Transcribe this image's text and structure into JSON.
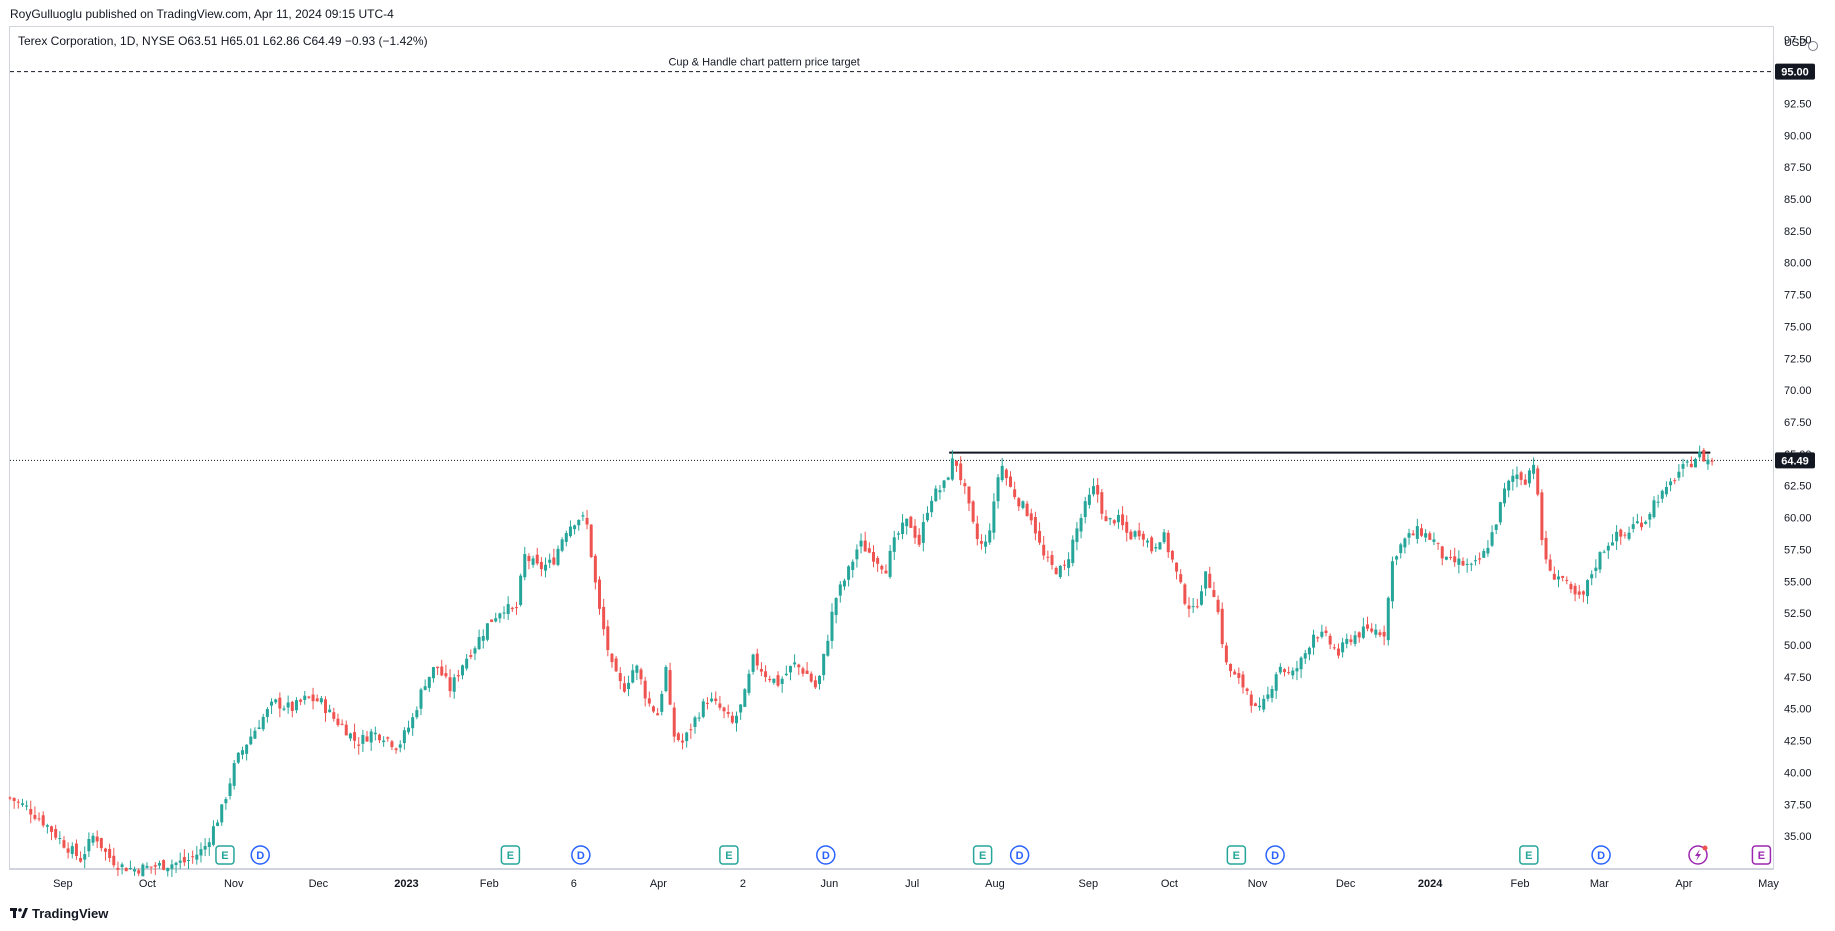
{
  "header": {
    "publisher_line": "RoyGulluoglu published on TradingView.com, Apr 11, 2024 09:15 UTC-4",
    "symbol_line": "Terex Corporation, 1D, NYSE  O63.51  H65.01  L62.86  C64.49  −0.93 (−1.42%)"
  },
  "price_axis": {
    "currency": "USD"
  },
  "footer": {
    "brand": "TradingView"
  },
  "colors": {
    "up": "#26a69a",
    "down": "#ef5350",
    "earnings": "#26a69a",
    "dividend": "#2962ff",
    "split": "#9c27b0",
    "text": "#131722"
  },
  "chart_data": {
    "type": "candlestick",
    "ylim": [
      32.5,
      98.5
    ],
    "y_ticks": [
      "35.00",
      "37.50",
      "40.00",
      "42.50",
      "45.00",
      "47.50",
      "50.00",
      "52.50",
      "55.00",
      "57.50",
      "60.00",
      "62.50",
      "65.00",
      "67.50",
      "70.00",
      "72.50",
      "75.00",
      "77.50",
      "80.00",
      "82.50",
      "85.00",
      "87.50",
      "90.00",
      "92.50",
      "95.00",
      "97.50"
    ],
    "x_labels": [
      {
        "label": "Sep",
        "x": 0.03
      },
      {
        "label": "Oct",
        "x": 0.078
      },
      {
        "label": "Nov",
        "x": 0.127
      },
      {
        "label": "Dec",
        "x": 0.175
      },
      {
        "label": "2023",
        "x": 0.225,
        "bold": true
      },
      {
        "label": "Feb",
        "x": 0.272
      },
      {
        "label": "6",
        "x": 0.32
      },
      {
        "label": "Apr",
        "x": 0.368
      },
      {
        "label": "2",
        "x": 0.416
      },
      {
        "label": "Jun",
        "x": 0.465
      },
      {
        "label": "Jul",
        "x": 0.512
      },
      {
        "label": "Aug",
        "x": 0.559
      },
      {
        "label": "Sep",
        "x": 0.612
      },
      {
        "label": "Oct",
        "x": 0.658
      },
      {
        "label": "Nov",
        "x": 0.708
      },
      {
        "label": "Dec",
        "x": 0.758
      },
      {
        "label": "2024",
        "x": 0.806,
        "bold": true
      },
      {
        "label": "Feb",
        "x": 0.857
      },
      {
        "label": "Mar",
        "x": 0.902
      },
      {
        "label": "Apr",
        "x": 0.95
      },
      {
        "label": "May",
        "x": 0.998
      }
    ],
    "last_price": {
      "value": 64.49,
      "label": "64.49"
    },
    "target": {
      "value": 95.0,
      "label": "95.00",
      "annotation": "Cup & Handle chart pattern price target"
    },
    "resistance": {
      "value": 65.1,
      "x_start": 0.533,
      "x_end": 0.965
    },
    "events": [
      {
        "type": "E",
        "x": 0.122
      },
      {
        "type": "D",
        "x": 0.142
      },
      {
        "type": "E",
        "x": 0.284
      },
      {
        "type": "D",
        "x": 0.324
      },
      {
        "type": "E",
        "x": 0.408
      },
      {
        "type": "D",
        "x": 0.463
      },
      {
        "type": "E",
        "x": 0.552
      },
      {
        "type": "D",
        "x": 0.573
      },
      {
        "type": "E",
        "x": 0.696
      },
      {
        "type": "D",
        "x": 0.718
      },
      {
        "type": "E",
        "x": 0.862
      },
      {
        "type": "D",
        "x": 0.903
      },
      {
        "type": "S",
        "x": 0.958
      },
      {
        "type": "E",
        "x": 0.994,
        "future": true
      }
    ],
    "close_path": [
      [
        0.0,
        38.0
      ],
      [
        0.01,
        37.2
      ],
      [
        0.02,
        36.0
      ],
      [
        0.03,
        34.5
      ],
      [
        0.04,
        33.2
      ],
      [
        0.048,
        35.2
      ],
      [
        0.055,
        33.5
      ],
      [
        0.062,
        32.7
      ],
      [
        0.07,
        32.4
      ],
      [
        0.08,
        32.6
      ],
      [
        0.09,
        32.8
      ],
      [
        0.1,
        33.0
      ],
      [
        0.11,
        34.0
      ],
      [
        0.12,
        37.0
      ],
      [
        0.128,
        40.8
      ],
      [
        0.135,
        42.5
      ],
      [
        0.142,
        44.0
      ],
      [
        0.15,
        45.5
      ],
      [
        0.16,
        45.0
      ],
      [
        0.168,
        45.8
      ],
      [
        0.176,
        45.6
      ],
      [
        0.184,
        44.2
      ],
      [
        0.19,
        43.5
      ],
      [
        0.197,
        42.3
      ],
      [
        0.205,
        43.1
      ],
      [
        0.212,
        42.9
      ],
      [
        0.22,
        42.0
      ],
      [
        0.228,
        44.0
      ],
      [
        0.235,
        47.0
      ],
      [
        0.242,
        48.4
      ],
      [
        0.25,
        46.5
      ],
      [
        0.257,
        48.6
      ],
      [
        0.264,
        50.0
      ],
      [
        0.272,
        51.8
      ],
      [
        0.28,
        53.0
      ],
      [
        0.287,
        52.5
      ],
      [
        0.292,
        57.0
      ],
      [
        0.3,
        56.0
      ],
      [
        0.308,
        56.5
      ],
      [
        0.315,
        59.0
      ],
      [
        0.322,
        60.0
      ],
      [
        0.327,
        59.8
      ],
      [
        0.33,
        57.0
      ],
      [
        0.334,
        53.0
      ],
      [
        0.338,
        50.5
      ],
      [
        0.342,
        48.0
      ],
      [
        0.348,
        46.5
      ],
      [
        0.355,
        48.5
      ],
      [
        0.362,
        45.5
      ],
      [
        0.368,
        44.5
      ],
      [
        0.372,
        48.5
      ],
      [
        0.376,
        43.0
      ],
      [
        0.382,
        42.3
      ],
      [
        0.39,
        44.5
      ],
      [
        0.396,
        45.8
      ],
      [
        0.403,
        45.0
      ],
      [
        0.41,
        43.8
      ],
      [
        0.416,
        45.5
      ],
      [
        0.422,
        49.0
      ],
      [
        0.428,
        47.8
      ],
      [
        0.436,
        47.0
      ],
      [
        0.445,
        48.5
      ],
      [
        0.452,
        47.8
      ],
      [
        0.458,
        46.5
      ],
      [
        0.463,
        49.8
      ],
      [
        0.468,
        53.5
      ],
      [
        0.475,
        55.5
      ],
      [
        0.482,
        58.0
      ],
      [
        0.49,
        57.0
      ],
      [
        0.497,
        56.0
      ],
      [
        0.503,
        58.5
      ],
      [
        0.51,
        59.8
      ],
      [
        0.516,
        58.0
      ],
      [
        0.522,
        61.5
      ],
      [
        0.53,
        62.5
      ],
      [
        0.536,
        64.8
      ],
      [
        0.542,
        62.0
      ],
      [
        0.548,
        58.5
      ],
      [
        0.553,
        57.5
      ],
      [
        0.558,
        60.5
      ],
      [
        0.562,
        64.5
      ],
      [
        0.567,
        62.5
      ],
      [
        0.574,
        61.0
      ],
      [
        0.58,
        60.0
      ],
      [
        0.586,
        57.0
      ],
      [
        0.592,
        56.0
      ],
      [
        0.598,
        55.8
      ],
      [
        0.604,
        58.5
      ],
      [
        0.61,
        60.8
      ],
      [
        0.616,
        62.5
      ],
      [
        0.622,
        59.5
      ],
      [
        0.628,
        60.0
      ],
      [
        0.635,
        58.5
      ],
      [
        0.642,
        59.0
      ],
      [
        0.648,
        57.5
      ],
      [
        0.654,
        58.8
      ],
      [
        0.66,
        56.5
      ],
      [
        0.666,
        53.8
      ],
      [
        0.672,
        52.5
      ],
      [
        0.678,
        55.5
      ],
      [
        0.684,
        54.0
      ],
      [
        0.69,
        48.5
      ],
      [
        0.696,
        47.3
      ],
      [
        0.702,
        46.5
      ],
      [
        0.708,
        44.5
      ],
      [
        0.714,
        46.0
      ],
      [
        0.72,
        48.5
      ],
      [
        0.727,
        47.5
      ],
      [
        0.734,
        49.0
      ],
      [
        0.74,
        51.0
      ],
      [
        0.747,
        50.5
      ],
      [
        0.754,
        49.3
      ],
      [
        0.76,
        50.5
      ],
      [
        0.767,
        51.0
      ],
      [
        0.774,
        51.2
      ],
      [
        0.78,
        51.0
      ],
      [
        0.785,
        57.0
      ],
      [
        0.792,
        58.3
      ],
      [
        0.8,
        59.0
      ],
      [
        0.808,
        58.2
      ],
      [
        0.815,
        56.5
      ],
      [
        0.822,
        56.5
      ],
      [
        0.83,
        56.0
      ],
      [
        0.836,
        57.0
      ],
      [
        0.842,
        59.0
      ],
      [
        0.848,
        62.0
      ],
      [
        0.854,
        63.5
      ],
      [
        0.86,
        63.0
      ],
      [
        0.865,
        64.5
      ],
      [
        0.869,
        58.5
      ],
      [
        0.874,
        55.5
      ],
      [
        0.88,
        55.5
      ],
      [
        0.886,
        54.0
      ],
      [
        0.892,
        53.5
      ],
      [
        0.898,
        55.8
      ],
      [
        0.904,
        57.5
      ],
      [
        0.91,
        58.5
      ],
      [
        0.916,
        58.5
      ],
      [
        0.922,
        59.5
      ],
      [
        0.928,
        59.8
      ],
      [
        0.934,
        61.5
      ],
      [
        0.94,
        62.0
      ],
      [
        0.946,
        63.5
      ],
      [
        0.952,
        64.0
      ],
      [
        0.958,
        65.0
      ],
      [
        0.963,
        64.5
      ],
      [
        0.966,
        64.49
      ]
    ]
  }
}
